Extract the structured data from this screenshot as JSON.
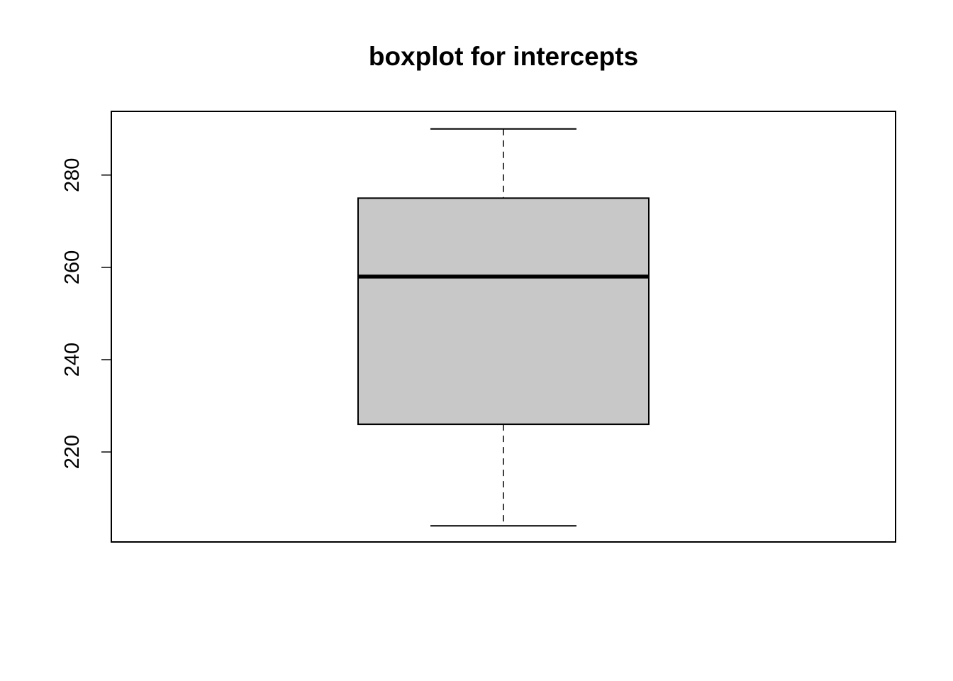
{
  "chart_data": {
    "type": "boxplot",
    "title": "boxplot for intercepts",
    "xlabel": "",
    "ylabel": "",
    "ylim": [
      200.5,
      293.8
    ],
    "yticks": [
      220,
      240,
      260,
      280
    ],
    "grid": false,
    "stats": {
      "whisker_low": 204,
      "q1": 226,
      "median": 258,
      "q3": 275,
      "whisker_high": 290
    },
    "colors": {
      "box_fill": "#c8c8c8",
      "stroke": "#000000"
    }
  }
}
